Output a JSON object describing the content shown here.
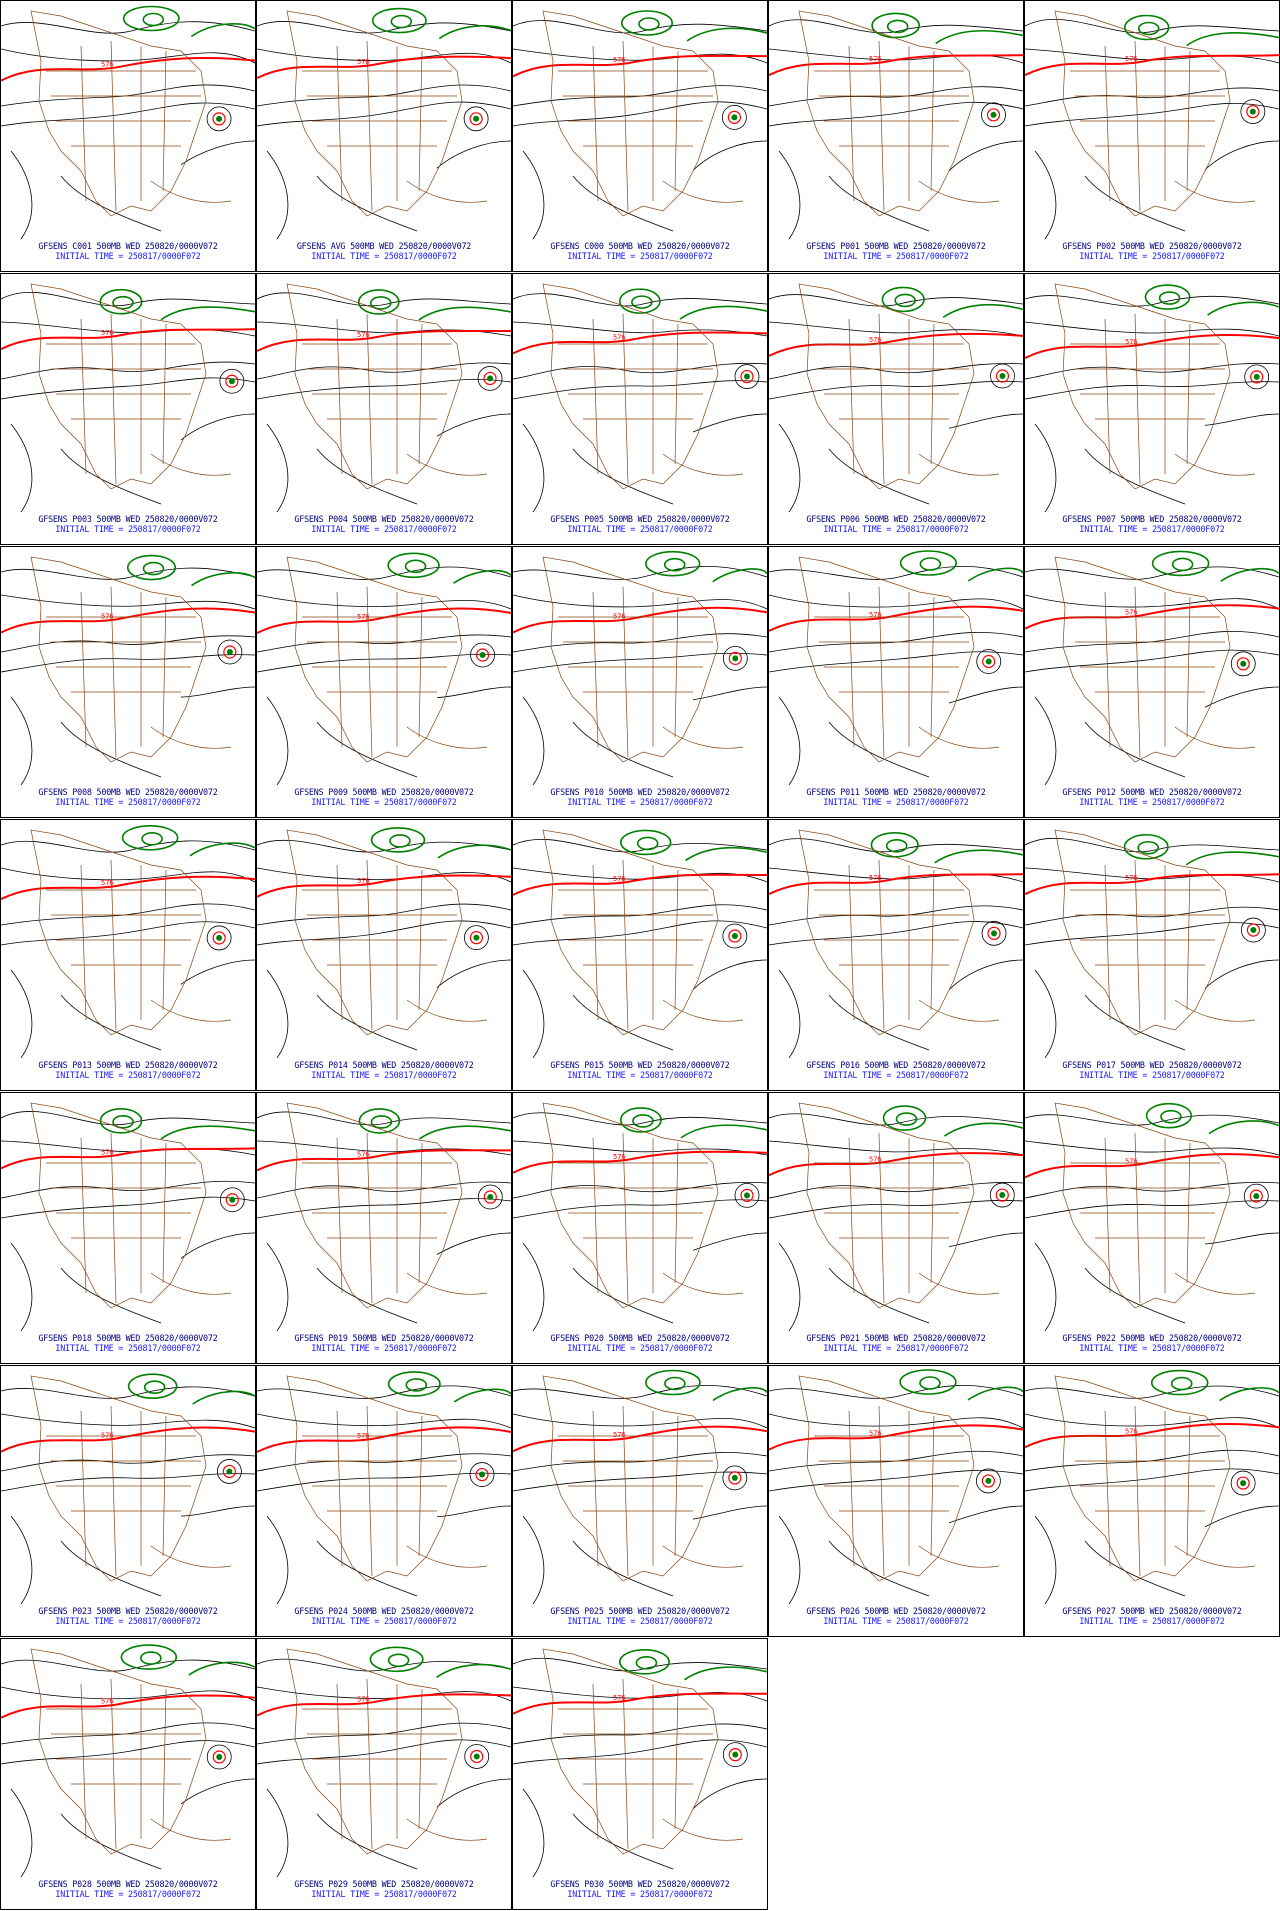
{
  "colors": {
    "height_contour": "#000000",
    "contour_576": "#ff0000",
    "contour_low": "#008000",
    "geography": "#8b4513",
    "caption_line1": "#000080",
    "caption_line2": "#1a1aff"
  },
  "contour_label": "576",
  "panels": [
    {
      "label": "GFSENS C001 500MB WED 250820/0000V072",
      "initial": "INITIAL TIME = 250817/0000F072"
    },
    {
      "label": "GFSENS AVG 500MB WED 250820/0000V072",
      "initial": "INITIAL TIME = 250817/0000F072"
    },
    {
      "label": "GFSENS C000 500MB WED 250820/0000V072",
      "initial": "INITIAL TIME = 250817/0000F072"
    },
    {
      "label": "GFSENS P001 500MB WED 250820/0000V072",
      "initial": "INITIAL TIME = 250817/0000F072"
    },
    {
      "label": "GFSENS P002 500MB WED 250820/0000V072",
      "initial": "INITIAL TIME = 250817/0000F072"
    },
    {
      "label": "GFSENS P003 500MB WED 250820/0000V072",
      "initial": "INITIAL TIME = 250817/0000F072"
    },
    {
      "label": "GFSENS P004 500MB WED 250820/0000V072",
      "initial": "INITIAL TIME = 250817/0000F072"
    },
    {
      "label": "GFSENS P005 500MB WED 250820/0000V072",
      "initial": "INITIAL TIME = 250817/0000F072"
    },
    {
      "label": "GFSENS P006 500MB WED 250820/0000V072",
      "initial": "INITIAL TIME = 250817/0000F072"
    },
    {
      "label": "GFSENS P007 500MB WED 250820/0000V072",
      "initial": "INITIAL TIME = 250817/0000F072"
    },
    {
      "label": "GFSENS P008 500MB WED 250820/0000V072",
      "initial": "INITIAL TIME = 250817/0000F072"
    },
    {
      "label": "GFSENS P009 500MB WED 250820/0000V072",
      "initial": "INITIAL TIME = 250817/0000F072"
    },
    {
      "label": "GFSENS P010 500MB WED 250820/0000V072",
      "initial": "INITIAL TIME = 250817/0000F072"
    },
    {
      "label": "GFSENS P011 500MB WED 250820/0000V072",
      "initial": "INITIAL TIME = 250817/0000F072"
    },
    {
      "label": "GFSENS P012 500MB WED 250820/0000V072",
      "initial": "INITIAL TIME = 250817/0000F072"
    },
    {
      "label": "GFSENS P013 500MB WED 250820/0000V072",
      "initial": "INITIAL TIME = 250817/0000F072"
    },
    {
      "label": "GFSENS P014 500MB WED 250820/0000V072",
      "initial": "INITIAL TIME = 250817/0000F072"
    },
    {
      "label": "GFSENS P015 500MB WED 250820/0000V072",
      "initial": "INITIAL TIME = 250817/0000F072"
    },
    {
      "label": "GFSENS P016 500MB WED 250820/0000V072",
      "initial": "INITIAL TIME = 250817/0000F072"
    },
    {
      "label": "GFSENS P017 500MB WED 250820/0000V072",
      "initial": "INITIAL TIME = 250817/0000F072"
    },
    {
      "label": "GFSENS P018 500MB WED 250820/0000V072",
      "initial": "INITIAL TIME = 250817/0000F072"
    },
    {
      "label": "GFSENS P019 500MB WED 250820/0000V072",
      "initial": "INITIAL TIME = 250817/0000F072"
    },
    {
      "label": "GFSENS P020 500MB WED 250820/0000V072",
      "initial": "INITIAL TIME = 250817/0000F072"
    },
    {
      "label": "GFSENS P021 500MB WED 250820/0000V072",
      "initial": "INITIAL TIME = 250817/0000F072"
    },
    {
      "label": "GFSENS P022 500MB WED 250820/0000V072",
      "initial": "INITIAL TIME = 250817/0000F072"
    },
    {
      "label": "GFSENS P023 500MB WED 250820/0000V072",
      "initial": "INITIAL TIME = 250817/0000F072"
    },
    {
      "label": "GFSENS P024 500MB WED 250820/0000V072",
      "initial": "INITIAL TIME = 250817/0000F072"
    },
    {
      "label": "GFSENS P025 500MB WED 250820/0000V072",
      "initial": "INITIAL TIME = 250817/0000F072"
    },
    {
      "label": "GFSENS P026 500MB WED 250820/0000V072",
      "initial": "INITIAL TIME = 250817/0000F072"
    },
    {
      "label": "GFSENS P027 500MB WED 250820/0000V072",
      "initial": "INITIAL TIME = 250817/0000F072"
    },
    {
      "label": "GFSENS P028 500MB WED 250820/0000V072",
      "initial": "INITIAL TIME = 250817/0000F072"
    },
    {
      "label": "GFSENS P029 500MB WED 250820/0000V072",
      "initial": "INITIAL TIME = 250817/0000F072"
    },
    {
      "label": "GFSENS P030 500MB WED 250820/0000V072",
      "initial": "INITIAL TIME = 250817/0000F072"
    }
  ]
}
